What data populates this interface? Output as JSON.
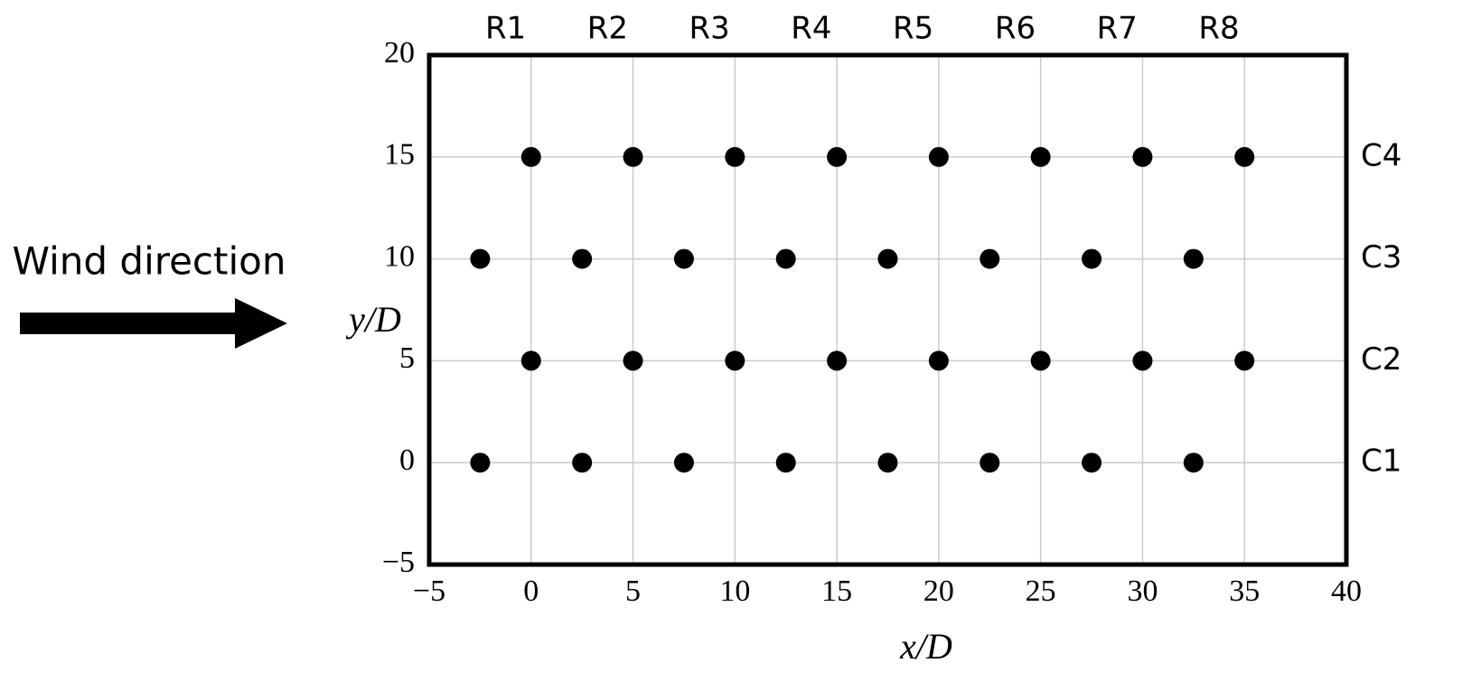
{
  "chart_data": {
    "type": "scatter",
    "annotation": "Wind direction",
    "xlabel": "x/D",
    "ylabel": "y/D",
    "column_labels": [
      "R1",
      "R2",
      "R3",
      "R4",
      "R5",
      "R6",
      "R7",
      "R8"
    ],
    "series": [
      {
        "name": "C1",
        "color": "#000000",
        "x": [
          -2.5,
          2.5,
          7.5,
          12.5,
          17.5,
          22.5,
          27.5,
          32.5
        ],
        "values": [
          0,
          0,
          0,
          0,
          0,
          0,
          0,
          0
        ]
      },
      {
        "name": "C2",
        "color": "#000000",
        "x": [
          0,
          5,
          10,
          15,
          20,
          25,
          30,
          35
        ],
        "values": [
          5,
          5,
          5,
          5,
          5,
          5,
          5,
          5
        ]
      },
      {
        "name": "C3",
        "color": "#000000",
        "x": [
          -2.5,
          2.5,
          7.5,
          12.5,
          17.5,
          22.5,
          27.5,
          32.5
        ],
        "values": [
          10,
          10,
          10,
          10,
          10,
          10,
          10,
          10
        ]
      },
      {
        "name": "C4",
        "color": "#000000",
        "x": [
          0,
          5,
          10,
          15,
          20,
          25,
          30,
          35
        ],
        "values": [
          15,
          15,
          15,
          15,
          15,
          15,
          15,
          15
        ]
      }
    ],
    "xlim": [
      -5,
      40
    ],
    "xticks": [
      {
        "value": -5,
        "label": "−5"
      },
      0,
      5,
      10,
      15,
      20,
      25,
      30,
      35,
      40
    ],
    "ylim": [
      -5,
      20
    ],
    "yticks": [
      {
        "value": -5,
        "label": "−5"
      },
      0,
      5,
      10,
      15,
      20
    ],
    "grid": true
  }
}
